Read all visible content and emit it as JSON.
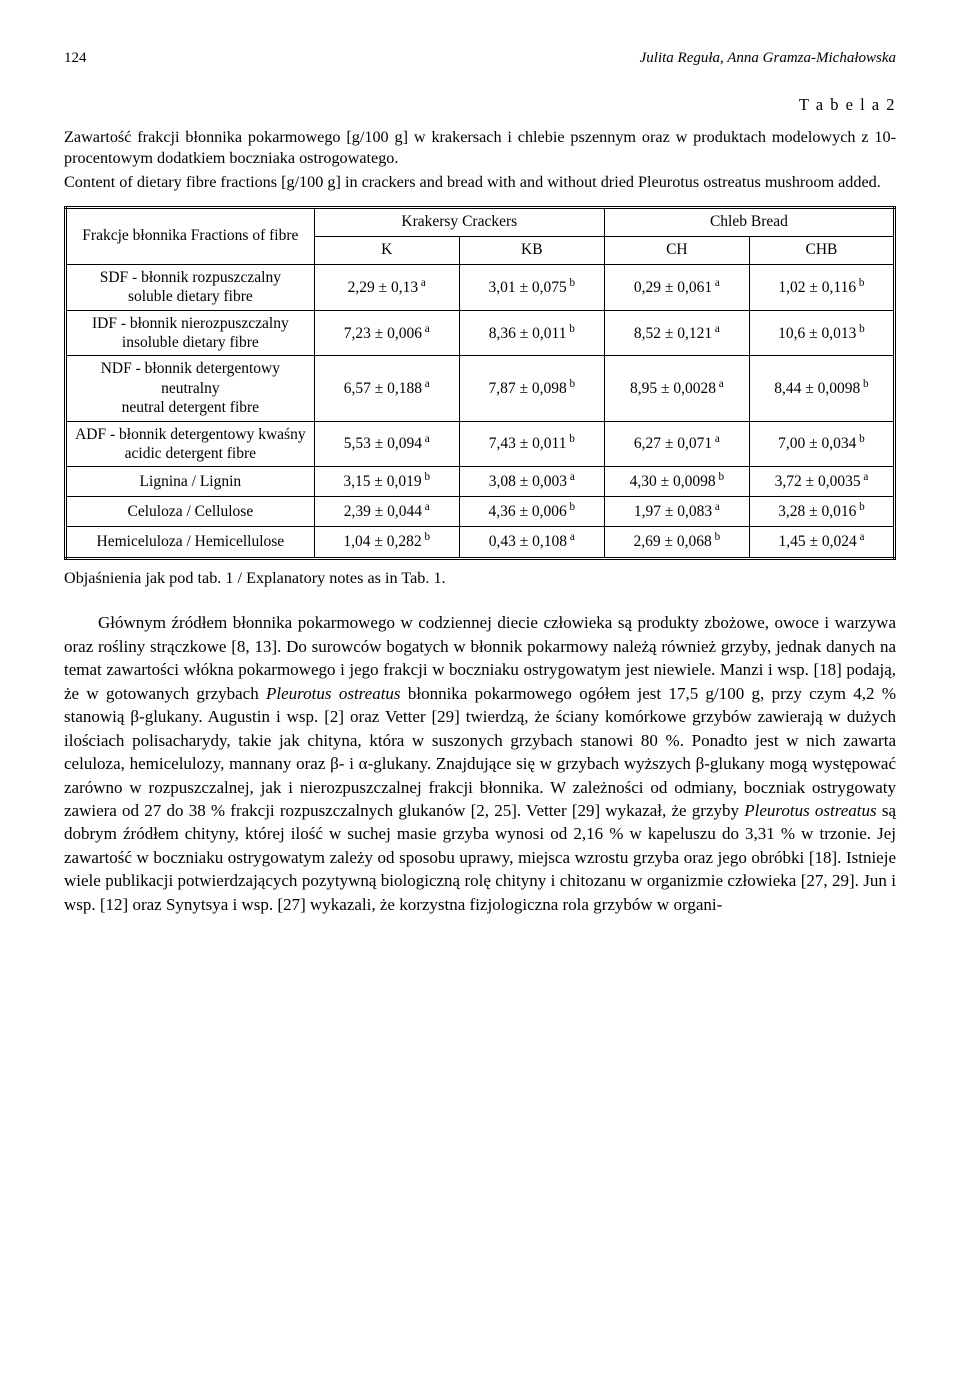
{
  "page": {
    "number": "124",
    "authors": "Julita Reguła, Anna Gramza-Michałowska"
  },
  "table": {
    "label": "T a b e l a  2",
    "caption_pl": "Zawartość frakcji błonnika pokarmowego [g/100 g] w krakersach i chlebie pszennym oraz w produktach modelowych z 10-procentowym dodatkiem boczniaka ostrogowatego.",
    "caption_en": "Content of dietary fibre fractions [g/100 g] in crackers and bread with and without dried Pleurotus ostreatus mushroom added.",
    "colgroup1_pl": "Krakersy",
    "colgroup1_en": "Crackers",
    "colgroup2_pl": "Chleb",
    "colgroup2_en": "Bread",
    "rowhead_pl": "Frakcje błonnika",
    "rowhead_en": "Fractions of fibre",
    "col_K": "K",
    "col_KB": "KB",
    "col_CH": "CH",
    "col_CHB": "CHB",
    "rows": [
      {
        "label_l1": "SDF - błonnik rozpuszczalny",
        "label_l2": "soluble dietary fibre",
        "K": {
          "v": "2,29 ± 0,13",
          "s": "a"
        },
        "KB": {
          "v": "3,01 ± 0,075",
          "s": "b"
        },
        "CH": {
          "v": "0,29 ± 0,061",
          "s": "a"
        },
        "CHB": {
          "v": "1,02 ± 0,116",
          "s": "b"
        }
      },
      {
        "label_l1": "IDF - błonnik nierozpuszczalny",
        "label_l2": "insoluble dietary fibre",
        "K": {
          "v": "7,23 ± 0,006",
          "s": "a"
        },
        "KB": {
          "v": "8,36 ± 0,011",
          "s": "b"
        },
        "CH": {
          "v": "8,52 ± 0,121",
          "s": "a"
        },
        "CHB": {
          "v": "10,6 ± 0,013",
          "s": "b"
        }
      },
      {
        "label_l1": "NDF - błonnik detergentowy neutralny",
        "label_l2": "neutral detergent fibre",
        "K": {
          "v": "6,57 ± 0,188",
          "s": "a"
        },
        "KB": {
          "v": "7,87 ± 0,098",
          "s": "b"
        },
        "CH": {
          "v": "8,95 ± 0,0028",
          "s": "a"
        },
        "CHB": {
          "v": "8,44 ± 0,0098",
          "s": "b"
        }
      },
      {
        "label_l1": "ADF - błonnik detergentowy kwaśny",
        "label_l2": "acidic detergent fibre",
        "K": {
          "v": "5,53 ± 0,094",
          "s": "a"
        },
        "KB": {
          "v": "7,43 ± 0,011",
          "s": "b"
        },
        "CH": {
          "v": "6,27 ± 0,071",
          "s": "a"
        },
        "CHB": {
          "v": "7,00 ± 0,034",
          "s": "b"
        }
      },
      {
        "label_l1": "Lignina / Lignin",
        "label_l2": "",
        "K": {
          "v": "3,15 ± 0,019",
          "s": "b"
        },
        "KB": {
          "v": "3,08 ± 0,003",
          "s": "a"
        },
        "CH": {
          "v": "4,30 ± 0,0098",
          "s": "b"
        },
        "CHB": {
          "v": "3,72 ± 0,0035",
          "s": "a"
        }
      },
      {
        "label_l1": "Celuloza / Cellulose",
        "label_l2": "",
        "K": {
          "v": "2,39 ± 0,044",
          "s": "a"
        },
        "KB": {
          "v": "4,36 ± 0,006",
          "s": "b"
        },
        "CH": {
          "v": "1,97 ± 0,083",
          "s": "a"
        },
        "CHB": {
          "v": "3,28 ± 0,016",
          "s": "b"
        }
      },
      {
        "label_l1": "Hemiceluloza / Hemicellulose",
        "label_l2": "",
        "K": {
          "v": "1,04 ± 0,282",
          "s": "b"
        },
        "KB": {
          "v": "0,43 ± 0,108",
          "s": "a"
        },
        "CH": {
          "v": "2,69 ± 0,068",
          "s": "b"
        },
        "CHB": {
          "v": "1,45 ± 0,024",
          "s": "a"
        }
      }
    ],
    "explanatory_note": "Objaśnienia jak pod tab. 1 / Explanatory notes as in Tab. 1.",
    "styling": {
      "border_color": "#000000",
      "outer_border": "3px double",
      "inner_border": "1px solid",
      "font_family": "Times New Roman",
      "header_fontsize_pt": 12,
      "cell_fontsize_pt": 12,
      "column_widths_pct": [
        30,
        17.5,
        17.5,
        17.5,
        17.5
      ],
      "text_align_values": "center",
      "superscript_fontsize_ratio": 0.72,
      "background_color": "#ffffff"
    }
  },
  "body_paragraph": {
    "text_parts": {
      "p1": "Głównym źródłem błonnika pokarmowego w codziennej diecie człowieka są produkty zbożowe, owoce i warzywa oraz rośliny strączkowe [8, 13]. Do surowców bogatych w błonnik pokarmowy należą również grzyby, jednak danych na temat zawartości włókna pokarmowego i jego frakcji w boczniaku ostrygowatym jest niewiele. Manzi i wsp. [18] podają, że w gotowanych grzybach ",
      "ital1": "Pleurotus ostreatus",
      "p2": " błonnika pokarmowego ogółem jest 17,5 g/100 g, przy czym 4,2 % stanowią β-glukany. Augustin i wsp. [2] oraz Vetter [29] twierdzą, że ściany komórkowe grzybów zawierają w dużych ilościach polisacharydy, takie jak chityna, która w suszonych grzybach stanowi 80 %. Ponadto jest w nich zawarta celuloza, hemicelulozy, mannany oraz β- i α-glukany. Znajdujące się w grzybach wyższych β-glukany mogą występować zarówno w rozpuszczalnej, jak i nierozpuszczalnej frakcji błonnika. W zależności od odmiany, boczniak ostrygowaty zawiera od 27 do 38 % frakcji rozpuszczalnych glukanów [2, 25]. Vetter [29] wykazał, że grzyby ",
      "ital2": "Pleurotus ostreatus",
      "p3": " są dobrym źródłem chityny, której ilość w suchej masie grzyba wynosi od 2,16 % w kapeluszu do 3,31 % w trzonie. Jej zawartość w boczniaku ostrygowatym zależy od sposobu uprawy, miejsca wzrostu grzyba oraz jego obróbki [18]. Istnieje wiele publikacji potwierdzających pozytywną biologiczną rolę chityny i chitozanu w organizmie człowieka [27, 29]. Jun i wsp. [12] oraz Synytsya i wsp. [27] wykazali, że korzystna fizjologiczna rola grzybów w organi-"
    },
    "styling": {
      "font_family": "Times New Roman",
      "fontsize_pt": 13,
      "text_align": "justify",
      "text_indent_em": 2,
      "line_height": 1.38,
      "color": "#000000"
    }
  }
}
